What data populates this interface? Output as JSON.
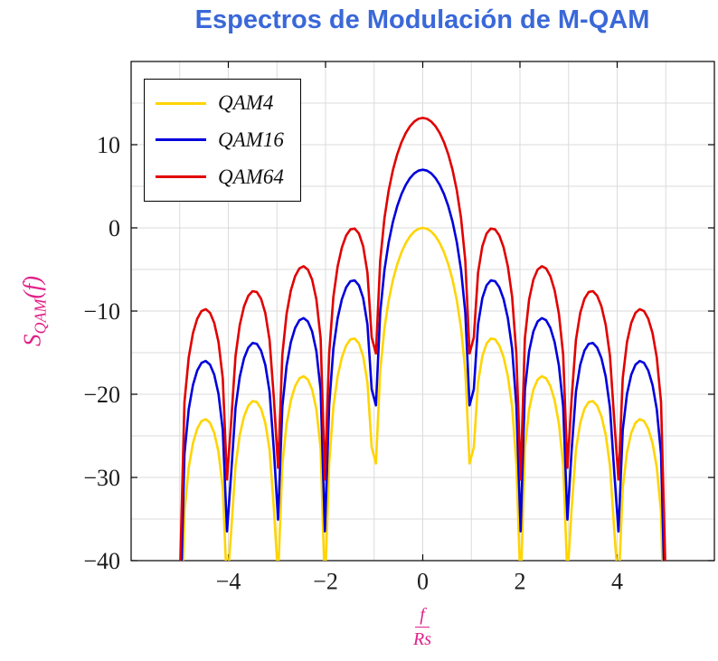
{
  "chart_data": {
    "type": "line",
    "title": "Espectros de Modulación de M-QAM",
    "xlabel": {
      "numerator": "f",
      "denominator": "Rs"
    },
    "ylabel": {
      "base": "S",
      "sub": "QAM",
      "tail": "(f)"
    },
    "xlim": [
      -6,
      6
    ],
    "ylim": [
      -40,
      20
    ],
    "x_ticks": [
      -4,
      -2,
      0,
      2,
      4
    ],
    "x_tick_labels": [
      "−4",
      "−2",
      "0",
      "2",
      "4"
    ],
    "y_ticks": [
      10,
      0,
      -10,
      -20,
      -30,
      -40
    ],
    "y_tick_labels": [
      "10",
      "0",
      "−10",
      "−20",
      "−30",
      "−40"
    ],
    "x_grid_step": 1,
    "y_grid_step": 5,
    "grid": true,
    "legend_position": "top-left",
    "curve_function": "S(f) = offset_db + 20*log10(|sin(pi*f/Rs)/(pi*f/Rs)|)  (sinc^2 spectrum in dB)",
    "x_range": [
      -4.99,
      4.99
    ],
    "samples": 115,
    "series": [
      {
        "name": "QAM4",
        "color": "#FFD400",
        "offset_db": 0,
        "main_lobe_peak_db": 0,
        "first_sidelobe_db": -13.3
      },
      {
        "name": "QAM16",
        "color": "#0000DD",
        "offset_db": 6.99,
        "main_lobe_peak_db": 7.0,
        "first_sidelobe_db": -6.3
      },
      {
        "name": "QAM64",
        "color": "#E10000",
        "offset_db": 13.22,
        "main_lobe_peak_db": 13.2,
        "first_sidelobe_db": -0.2
      }
    ],
    "nulls_at": [
      -4,
      -3,
      -2,
      -1,
      1,
      2,
      3,
      4
    ],
    "sidelobe_peak_positions": [
      1.43,
      2.46,
      3.47,
      4.48
    ],
    "qam4_sidelobe_peaks_db": [
      -13.3,
      -17.8,
      -20.8,
      -23.0
    ]
  },
  "colors": {
    "title": "#3A68D8",
    "axis_label": "#E0218A",
    "grid": "#DBDBDB",
    "axis": "#000000",
    "tick_label": "#1C1C1C",
    "plot_background": "#FFFFFF"
  }
}
